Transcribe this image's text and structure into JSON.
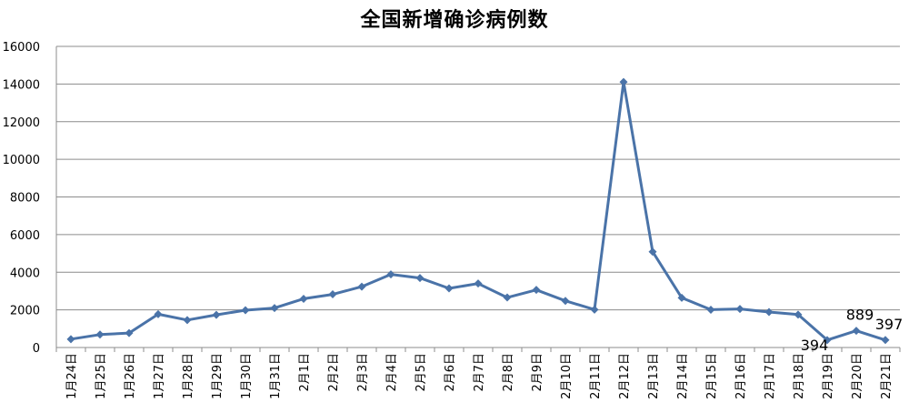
{
  "chart_data": {
    "type": "line",
    "title": "全国新增确诊病例数",
    "xlabel": "",
    "ylabel": "",
    "ylim": [
      0,
      16000
    ],
    "yticks": [
      0,
      2000,
      4000,
      6000,
      8000,
      10000,
      12000,
      14000,
      16000
    ],
    "grid": true,
    "line_color": "#4a73a8",
    "categories": [
      "1月24日",
      "1月25日",
      "1月26日",
      "1月27日",
      "1月28日",
      "1月29日",
      "1月30日",
      "1月31日",
      "2月1日",
      "2月2日",
      "2月3日",
      "2月4日",
      "2月5日",
      "2月6日",
      "2月7日",
      "2月8日",
      "2月9日",
      "2月10日",
      "2月11日",
      "2月12日",
      "2月13日",
      "2月14日",
      "2月15日",
      "2月16日",
      "2月17日",
      "2月18日",
      "2月19日",
      "2月20日",
      "2月21日"
    ],
    "values": [
      444,
      688,
      769,
      1771,
      1459,
      1737,
      1981,
      2099,
      2589,
      2825,
      3235,
      3887,
      3694,
      3143,
      3399,
      2656,
      3062,
      2478,
      2015,
      14108,
      5090,
      2641,
      2009,
      2048,
      1886,
      1749,
      394,
      889,
      397
    ],
    "data_labels": [
      {
        "index": 26,
        "text": "394"
      },
      {
        "index": 27,
        "text": "889"
      },
      {
        "index": 28,
        "text": "397"
      }
    ]
  }
}
